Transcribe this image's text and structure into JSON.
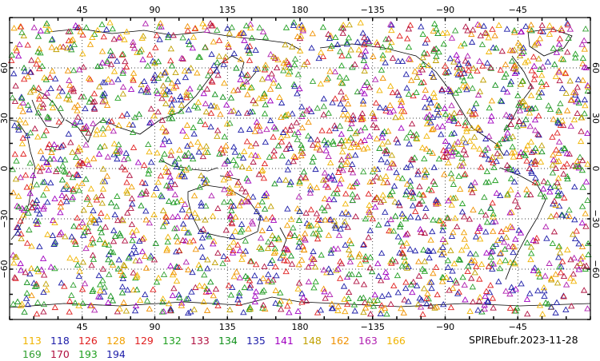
{
  "chart_data": {
    "type": "scatter",
    "projection": "cylindrical-equidistant",
    "marker": "triangle-outline",
    "xlim": [
      0,
      360
    ],
    "ylim": [
      -90,
      90
    ],
    "grid": "dotted",
    "x_ticks": [
      {
        "lon": 45,
        "label": "45"
      },
      {
        "lon": 90,
        "label": "90"
      },
      {
        "lon": 135,
        "label": "135"
      },
      {
        "lon": 180,
        "label": "180"
      },
      {
        "lon": 225,
        "label": "−135"
      },
      {
        "lon": 270,
        "label": "−90"
      },
      {
        "lon": 315,
        "label": "−45"
      }
    ],
    "y_ticks": [
      {
        "lat": 60,
        "label": "60"
      },
      {
        "lat": 30,
        "label": "30"
      },
      {
        "lat": 0,
        "label": "0"
      },
      {
        "lat": -30,
        "label": "−30"
      },
      {
        "lat": -60,
        "label": "−60"
      }
    ],
    "legend": [
      {
        "label": "113",
        "color": "#f0b400"
      },
      {
        "label": "118",
        "color": "#1c1ca8"
      },
      {
        "label": "126",
        "color": "#e02020"
      },
      {
        "label": "128",
        "color": "#f0a000"
      },
      {
        "label": "129",
        "color": "#e02020"
      },
      {
        "label": "132",
        "color": "#20a020"
      },
      {
        "label": "133",
        "color": "#b01040"
      },
      {
        "label": "134",
        "color": "#10901a"
      },
      {
        "label": "135",
        "color": "#1c1ca8"
      },
      {
        "label": "141",
        "color": "#a000c0"
      },
      {
        "label": "148",
        "color": "#c0a000"
      },
      {
        "label": "162",
        "color": "#f09000"
      },
      {
        "label": "163",
        "color": "#b020b0"
      },
      {
        "label": "166",
        "color": "#f0b400"
      },
      {
        "label": "169",
        "color": "#30a030"
      },
      {
        "label": "170",
        "color": "#b01040"
      },
      {
        "label": "193",
        "color": "#20a020"
      },
      {
        "label": "194",
        "color": "#1c1ca8"
      }
    ],
    "source_label": "SPIREbufr.2023-11-28"
  }
}
